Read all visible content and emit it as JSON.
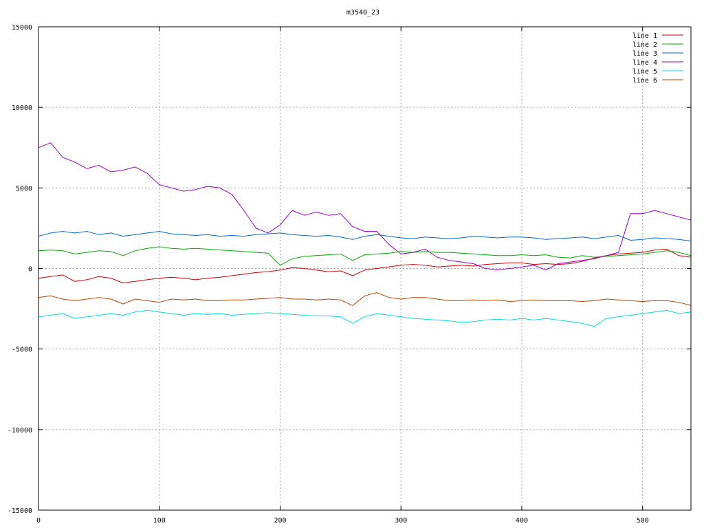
{
  "chart_data": {
    "type": "line",
    "title": "m3540_23",
    "xlabel": "",
    "ylabel": "",
    "xlim": [
      0,
      540
    ],
    "ylim": [
      -15000,
      15000
    ],
    "x_ticks": [
      0,
      100,
      200,
      300,
      400,
      500
    ],
    "y_ticks": [
      -15000,
      -10000,
      -5000,
      0,
      5000,
      10000,
      15000
    ],
    "x_tick_labels": [
      "0",
      "100",
      "200",
      "300",
      "400",
      "500"
    ],
    "y_tick_labels": [
      "-15000",
      "-10000",
      "-5000",
      "0",
      "5000",
      "10000",
      "15000"
    ],
    "grid": true,
    "legend_position": "top-right",
    "series": [
      {
        "name": "line 1",
        "color": "#cc0000",
        "x": [
          0,
          10,
          20,
          30,
          40,
          50,
          60,
          70,
          80,
          90,
          100,
          110,
          120,
          130,
          140,
          150,
          160,
          170,
          180,
          190,
          200,
          210,
          220,
          230,
          240,
          250,
          260,
          270,
          280,
          290,
          300,
          310,
          320,
          330,
          340,
          350,
          360,
          370,
          380,
          390,
          400,
          410,
          420,
          430,
          440,
          450,
          460,
          470,
          480,
          490,
          500,
          510,
          520,
          530,
          540
        ],
        "values": [
          -600,
          -500,
          -400,
          -800,
          -700,
          -500,
          -600,
          -900,
          -800,
          -700,
          -600,
          -550,
          -600,
          -700,
          -600,
          -550,
          -450,
          -350,
          -250,
          -200,
          -100,
          50,
          0,
          -100,
          -200,
          -150,
          -450,
          -100,
          0,
          100,
          200,
          250,
          200,
          100,
          150,
          200,
          150,
          250,
          300,
          350,
          350,
          250,
          300,
          250,
          300,
          450,
          650,
          800,
          900,
          950,
          1000,
          1150,
          1200,
          800,
          700
        ]
      },
      {
        "name": "line 2",
        "color": "#00aa00",
        "x": [
          0,
          10,
          20,
          30,
          40,
          50,
          60,
          70,
          80,
          90,
          100,
          110,
          120,
          130,
          140,
          150,
          160,
          170,
          180,
          190,
          200,
          210,
          220,
          230,
          240,
          250,
          260,
          270,
          280,
          290,
          300,
          310,
          320,
          330,
          340,
          350,
          360,
          370,
          380,
          390,
          400,
          410,
          420,
          430,
          440,
          450,
          460,
          470,
          480,
          490,
          500,
          510,
          520,
          530,
          540
        ],
        "values": [
          1100,
          1150,
          1100,
          900,
          1000,
          1100,
          1050,
          800,
          1100,
          1250,
          1350,
          1250,
          1200,
          1250,
          1200,
          1150,
          1100,
          1050,
          1000,
          950,
          200,
          600,
          750,
          800,
          850,
          900,
          500,
          850,
          900,
          950,
          1050,
          1000,
          1050,
          1000,
          1000,
          950,
          900,
          850,
          800,
          800,
          850,
          800,
          850,
          700,
          650,
          800,
          700,
          750,
          800,
          850,
          900,
          1000,
          1100,
          1000,
          800
        ]
      },
      {
        "name": "line 3",
        "color": "#0066cc",
        "x": [
          0,
          10,
          20,
          30,
          40,
          50,
          60,
          70,
          80,
          90,
          100,
          110,
          120,
          130,
          140,
          150,
          160,
          170,
          180,
          190,
          200,
          210,
          220,
          230,
          240,
          250,
          260,
          270,
          280,
          290,
          300,
          310,
          320,
          330,
          340,
          350,
          360,
          370,
          380,
          390,
          400,
          410,
          420,
          430,
          440,
          450,
          460,
          470,
          480,
          490,
          500,
          510,
          520,
          530,
          540
        ],
        "values": [
          2000,
          2200,
          2300,
          2200,
          2300,
          2100,
          2200,
          2000,
          2100,
          2200,
          2300,
          2150,
          2100,
          2050,
          2100,
          2000,
          2050,
          2000,
          2100,
          2150,
          2200,
          2100,
          2050,
          2000,
          2050,
          1950,
          1800,
          2000,
          2100,
          2000,
          1900,
          1850,
          1950,
          1900,
          1850,
          1900,
          2000,
          1950,
          1900,
          1950,
          1950,
          1900,
          1800,
          1850,
          1900,
          1950,
          1850,
          1950,
          2050,
          1750,
          1800,
          1900,
          1850,
          1800,
          1700
        ]
      },
      {
        "name": "line 4",
        "color": "#9900cc",
        "x": [
          0,
          10,
          20,
          30,
          40,
          50,
          60,
          70,
          80,
          90,
          100,
          110,
          120,
          130,
          140,
          150,
          160,
          170,
          180,
          190,
          200,
          210,
          220,
          230,
          240,
          250,
          260,
          270,
          280,
          290,
          300,
          310,
          320,
          330,
          340,
          350,
          360,
          370,
          380,
          390,
          400,
          410,
          420,
          430,
          440,
          450,
          460,
          470,
          480,
          490,
          500,
          510,
          520,
          530,
          540
        ],
        "values": [
          7500,
          7800,
          6900,
          6600,
          6200,
          6400,
          6000,
          6100,
          6300,
          5900,
          5200,
          5000,
          4800,
          4900,
          5100,
          5000,
          4600,
          3600,
          2500,
          2200,
          2700,
          3600,
          3300,
          3500,
          3300,
          3400,
          2600,
          2300,
          2300,
          1500,
          900,
          1000,
          1200,
          700,
          500,
          400,
          300,
          0,
          -100,
          0,
          100,
          200,
          -100,
          300,
          400,
          500,
          600,
          800,
          1000,
          3400,
          3400,
          3600,
          3400,
          3200,
          3000
        ]
      },
      {
        "name": "line 5",
        "color": "#00dddd",
        "x": [
          0,
          10,
          20,
          30,
          40,
          50,
          60,
          70,
          80,
          90,
          100,
          110,
          120,
          130,
          140,
          150,
          160,
          170,
          180,
          190,
          200,
          210,
          220,
          230,
          240,
          250,
          260,
          270,
          280,
          290,
          300,
          310,
          320,
          330,
          340,
          350,
          360,
          370,
          380,
          390,
          400,
          410,
          420,
          430,
          440,
          450,
          460,
          470,
          480,
          490,
          500,
          510,
          520,
          530,
          540
        ],
        "values": [
          -3000,
          -2900,
          -2800,
          -3100,
          -3000,
          -2900,
          -2800,
          -2900,
          -2700,
          -2600,
          -2700,
          -2800,
          -2900,
          -2800,
          -2850,
          -2800,
          -2900,
          -2850,
          -2800,
          -2750,
          -2800,
          -2850,
          -2900,
          -2950,
          -2950,
          -3000,
          -3400,
          -3000,
          -2800,
          -2900,
          -3000,
          -3100,
          -3150,
          -3200,
          -3250,
          -3350,
          -3300,
          -3200,
          -3150,
          -3200,
          -3100,
          -3200,
          -3100,
          -3200,
          -3300,
          -3400,
          -3600,
          -3100,
          -3000,
          -2900,
          -2800,
          -2700,
          -2600,
          -2800,
          -2700
        ]
      },
      {
        "name": "line 6",
        "color": "#bb4400",
        "x": [
          0,
          10,
          20,
          30,
          40,
          50,
          60,
          70,
          80,
          90,
          100,
          110,
          120,
          130,
          140,
          150,
          160,
          170,
          180,
          190,
          200,
          210,
          220,
          230,
          240,
          250,
          260,
          270,
          280,
          290,
          300,
          310,
          320,
          330,
          340,
          350,
          360,
          370,
          380,
          390,
          400,
          410,
          420,
          430,
          440,
          450,
          460,
          470,
          480,
          490,
          500,
          510,
          520,
          530,
          540
        ],
        "values": [
          -1800,
          -1700,
          -1900,
          -2000,
          -1900,
          -1800,
          -1900,
          -2200,
          -1900,
          -2000,
          -2100,
          -1900,
          -1950,
          -1900,
          -2000,
          -2000,
          -1950,
          -1950,
          -1900,
          -1850,
          -1800,
          -1900,
          -1900,
          -1950,
          -1900,
          -1950,
          -2300,
          -1700,
          -1500,
          -1800,
          -1900,
          -1800,
          -1800,
          -1900,
          -2000,
          -2000,
          -1950,
          -2000,
          -1950,
          -2050,
          -2000,
          -1950,
          -2000,
          -2000,
          -2000,
          -2050,
          -2000,
          -1900,
          -1950,
          -2000,
          -2050,
          -2000,
          -2000,
          -2100,
          -2300
        ]
      }
    ]
  }
}
